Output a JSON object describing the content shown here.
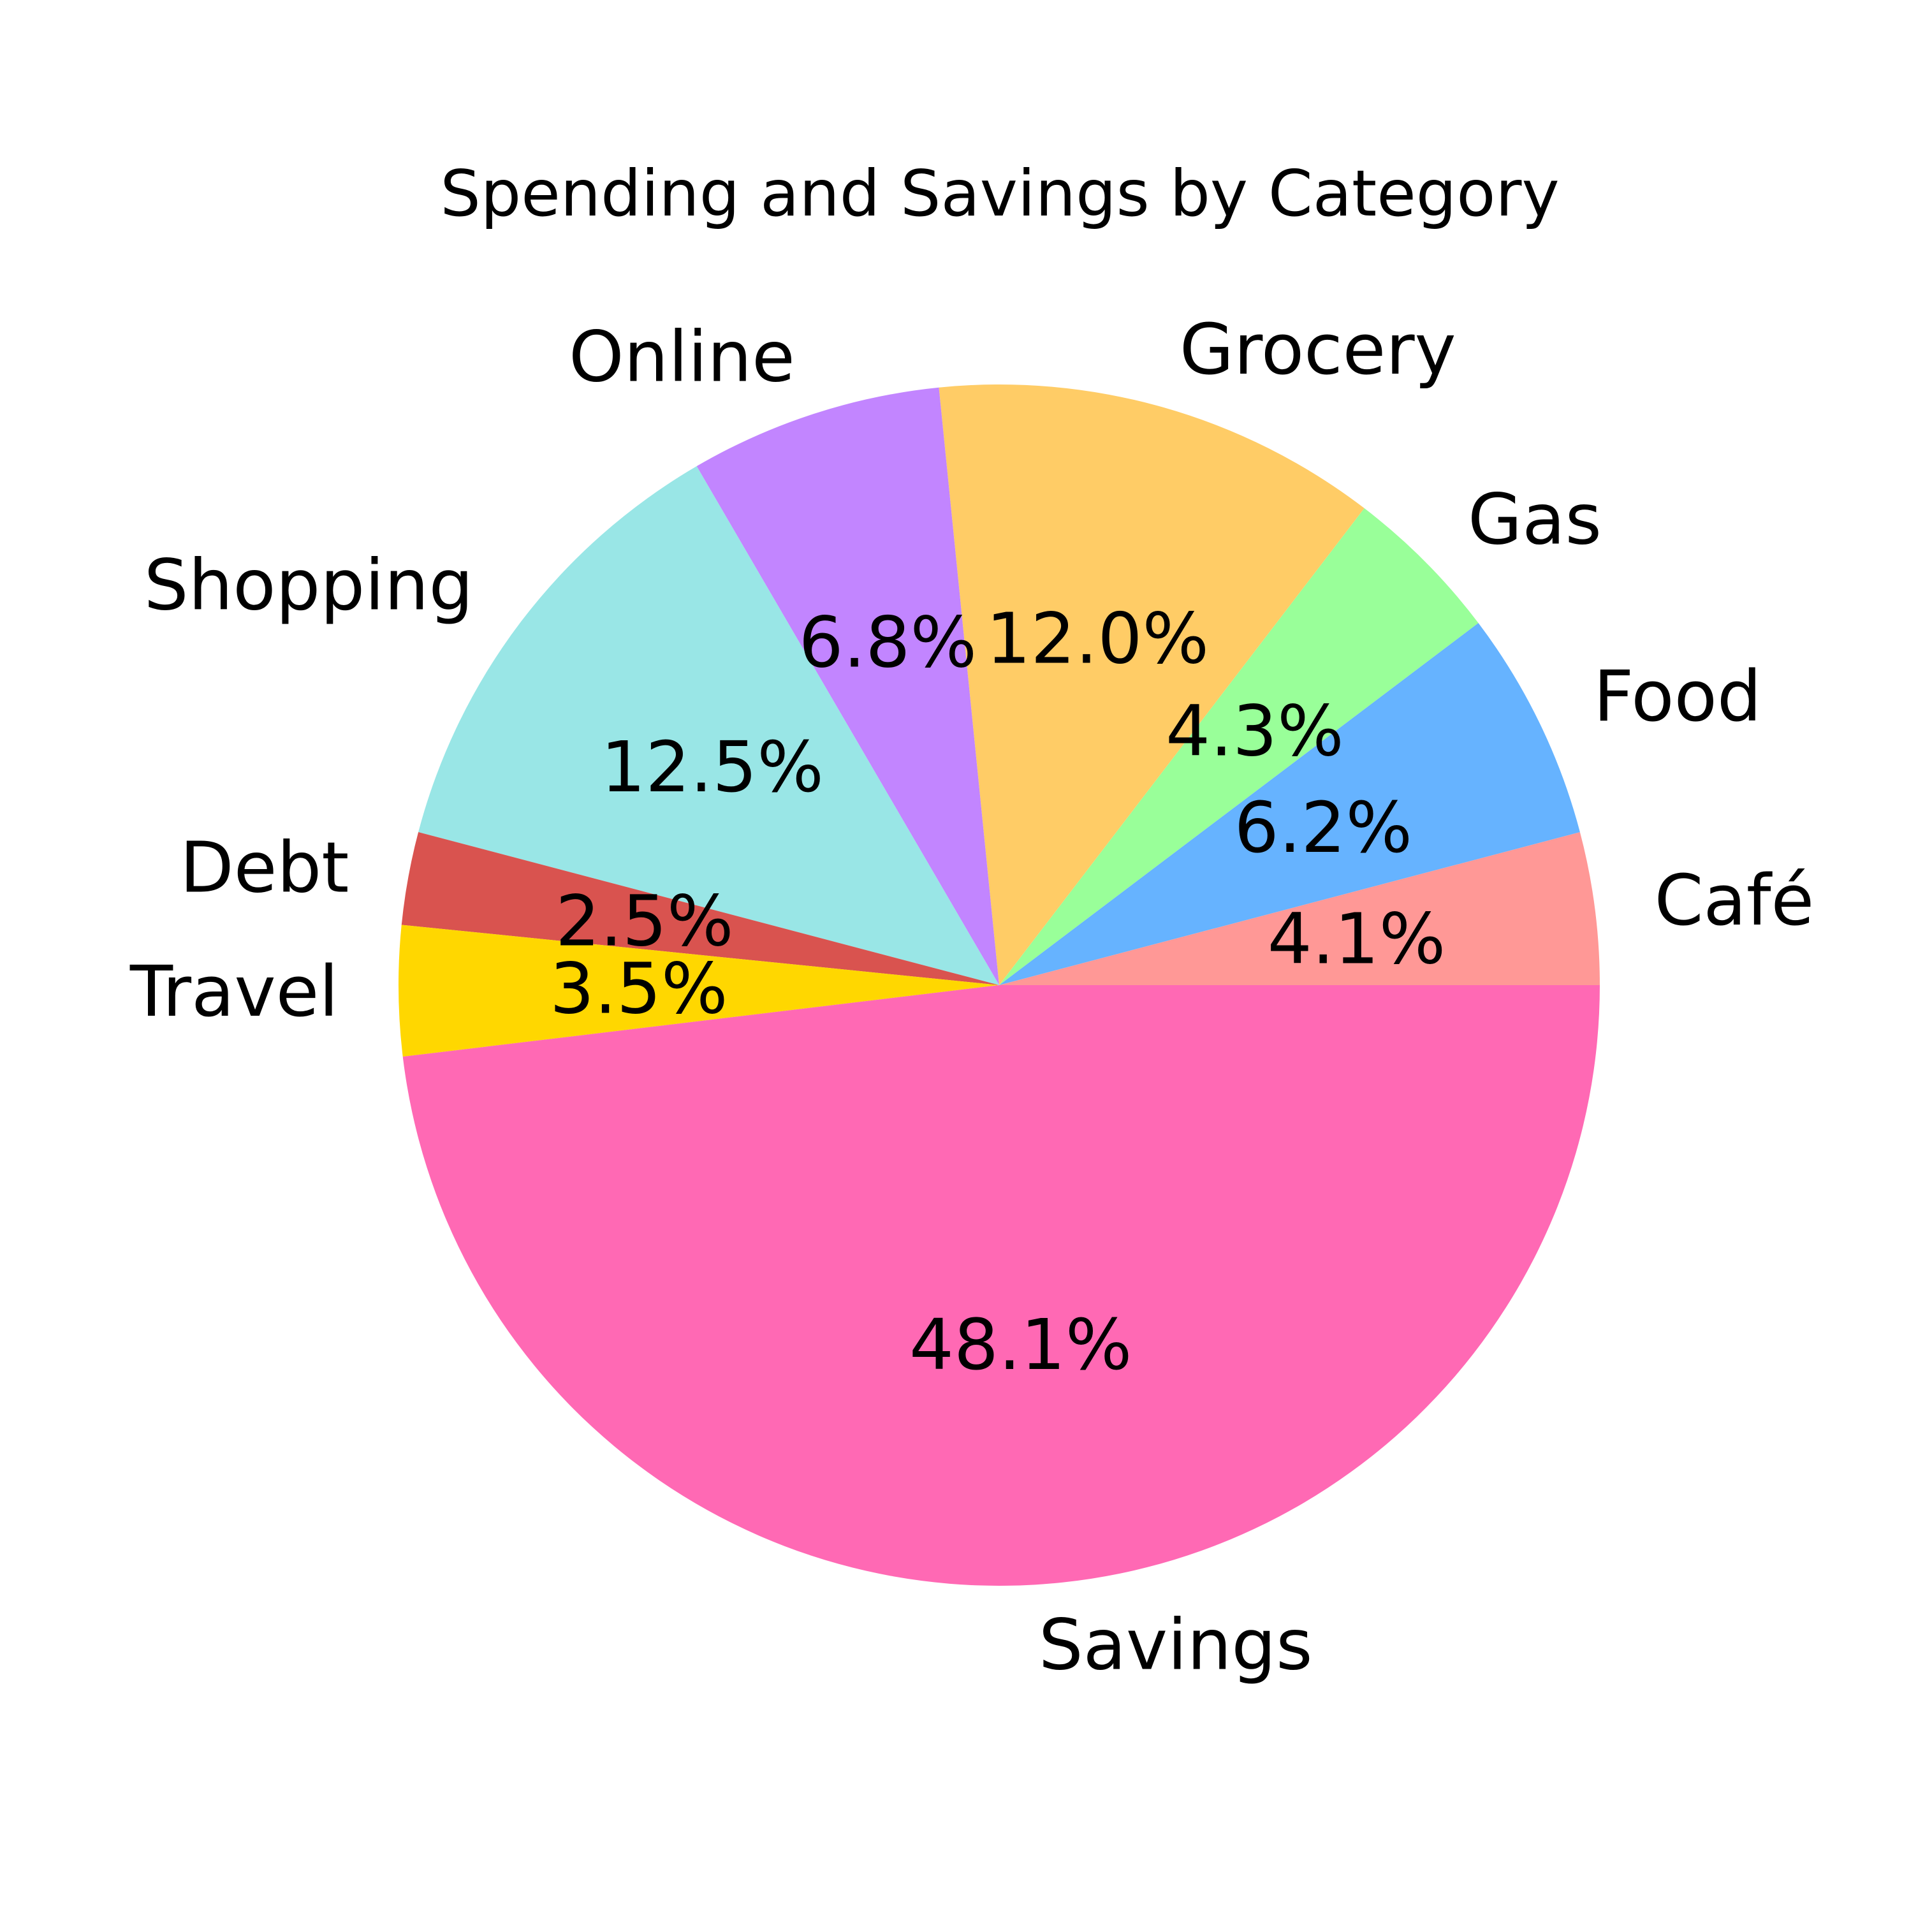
{
  "chart_data": {
    "type": "pie",
    "title": "Spending and Savings by Category",
    "start_angle_deg": 0,
    "direction": "counterclockwise",
    "background": "#ffffff",
    "slices": [
      {
        "label": "Café",
        "value": 4.1,
        "pct_label": "4.1%",
        "color": "#ff9896"
      },
      {
        "label": "Food",
        "value": 6.2,
        "pct_label": "6.2%",
        "color": "#66b3ff"
      },
      {
        "label": "Gas",
        "value": 4.3,
        "pct_label": "4.3%",
        "color": "#99ff99"
      },
      {
        "label": "Grocery",
        "value": 12.0,
        "pct_label": "12.0%",
        "color": "#ffcc66"
      },
      {
        "label": "Online",
        "value": 6.8,
        "pct_label": "6.8%",
        "color": "#c285ff"
      },
      {
        "label": "Shopping",
        "value": 12.5,
        "pct_label": "12.5%",
        "color": "#99e6e6"
      },
      {
        "label": "Debt",
        "value": 2.5,
        "pct_label": "2.5%",
        "color": "#d9534f"
      },
      {
        "label": "Travel",
        "value": 3.5,
        "pct_label": "3.5%",
        "color": "#ffd700"
      },
      {
        "label": "Savings",
        "value": 48.1,
        "pct_label": "48.1%",
        "color": "#ff69b4"
      }
    ]
  }
}
